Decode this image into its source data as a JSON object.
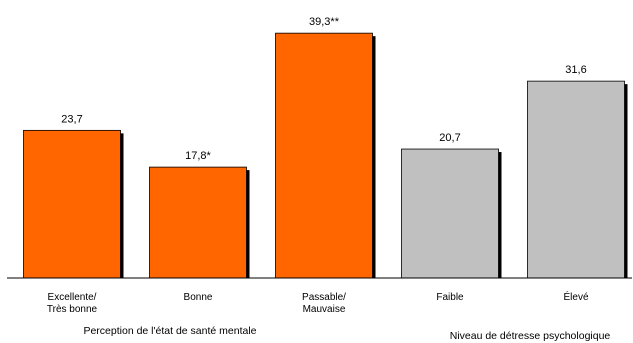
{
  "chart_data": {
    "type": "bar",
    "title": "",
    "xlabel": "",
    "ylabel": "",
    "ylim": [
      0,
      42
    ],
    "grid": false,
    "legend": "none",
    "categories": [
      [
        "Excellente/",
        "Très bonne"
      ],
      [
        "Bonne"
      ],
      [
        "Passable/",
        "Mauvaise"
      ],
      [
        "Faible"
      ],
      [
        "Élevé"
      ]
    ],
    "values": [
      23.7,
      17.8,
      39.3,
      20.7,
      31.6
    ],
    "value_labels": [
      "23,7",
      "17,8*",
      "39,3**",
      "20,7",
      "31,6"
    ],
    "bar_colors": [
      "#ff6600",
      "#ff6600",
      "#ff6600",
      "#c0c0c0",
      "#c0c0c0"
    ],
    "groups": [
      {
        "label": "Perception de l'état de santé mentale",
        "categories": [
          0,
          1,
          2
        ]
      },
      {
        "label": "Niveau de détresse psychologique",
        "categories": [
          3,
          4
        ]
      }
    ]
  },
  "colors": {
    "orange": "#ff6600",
    "gray": "#c0c0c0",
    "shadow": "#000000",
    "axis": "#000000"
  }
}
